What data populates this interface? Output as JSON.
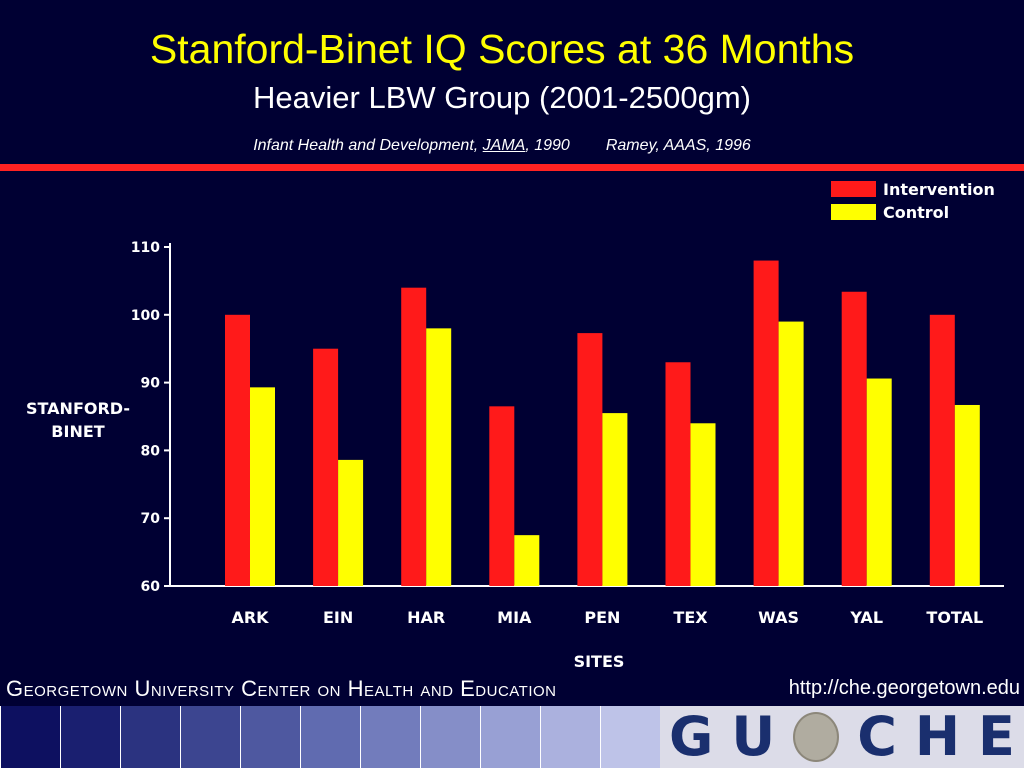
{
  "slide": {
    "title": "Stanford-Binet IQ Scores at 36 Months",
    "subtitle": "Heavier LBW Group (2001-2500gm)",
    "citation": {
      "part1": "Infant Health and Development, ",
      "journal": "JAMA",
      "part2": ", 1990",
      "part3": "Ramey, AAAS, 1996"
    },
    "footer": {
      "org": "Georgetown University Center on Health and Education",
      "url": "http://che.georgetown.edu"
    },
    "logo": {
      "letters": [
        "G",
        "U",
        "C",
        "H",
        "E"
      ],
      "seal_icon": "georgetown-seal-icon"
    },
    "colors": {
      "background": "#000033",
      "title": "#ffff00",
      "rule": "#ff2222",
      "logo_text": "#1a2f6e",
      "stripes": [
        "#0d1060",
        "#1a1f70",
        "#2b3380",
        "#3c4590",
        "#4e58a0",
        "#606bb0",
        "#727cbc",
        "#858ec8",
        "#98a0d4",
        "#abb1de",
        "#bec3e8"
      ]
    }
  },
  "chart_data": {
    "type": "bar",
    "categories": [
      "ARK",
      "EIN",
      "HAR",
      "MIA",
      "PEN",
      "TEX",
      "WAS",
      "YAL",
      "TOTAL"
    ],
    "series": [
      {
        "name": "Intervention",
        "color": "#ff1a1a",
        "values": [
          100,
          95,
          104,
          86.5,
          97.3,
          93,
          108,
          103.4,
          100
        ]
      },
      {
        "name": "Control",
        "color": "#ffff00",
        "values": [
          89.3,
          78.6,
          98,
          67.5,
          85.5,
          84,
          99,
          90.6,
          86.7
        ]
      }
    ],
    "ylabel": "STANFORD-BINET",
    "xlabel": "SITES",
    "ylim": [
      60,
      110
    ],
    "yticks": [
      60,
      70,
      80,
      90,
      100,
      110
    ],
    "legend_position": "top-right",
    "grid": false
  }
}
